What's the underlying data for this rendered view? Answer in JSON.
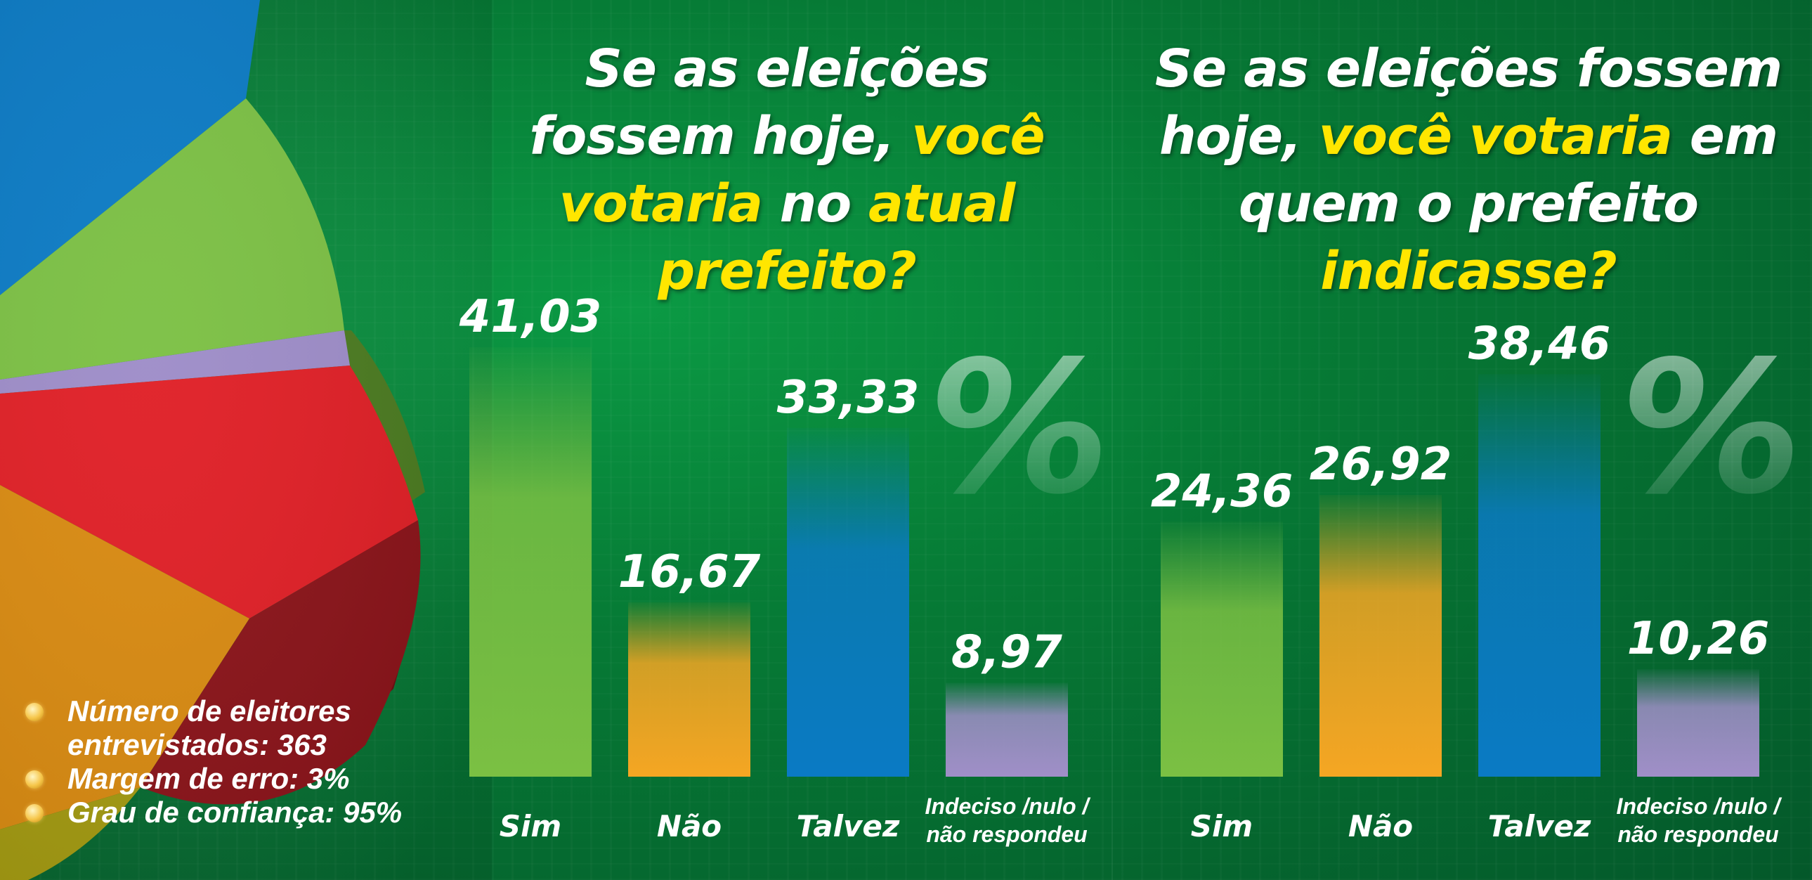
{
  "titles": [
    {
      "parts": [
        {
          "text": "Se as eleições fossem hoje, ",
          "highlight": false
        },
        {
          "text": "você votaria",
          "highlight": true
        },
        {
          "text": " no ",
          "highlight": false
        },
        {
          "text": "atual prefeito?",
          "highlight": true
        }
      ]
    },
    {
      "parts": [
        {
          "text": "Se as eleições fossem hoje, ",
          "highlight": false
        },
        {
          "text": "você votaria",
          "highlight": true
        },
        {
          "text": " em quem o prefeito ",
          "highlight": false
        },
        {
          "text": "indicasse?",
          "highlight": true
        }
      ]
    }
  ],
  "percent_symbol": "%",
  "colors": {
    "background": "#067a35",
    "highlight_text": "#ffe600",
    "sim": "#7bc043",
    "nao": "#f5a623",
    "talvez": "#0a7ac4",
    "indeciso": "#a08fc8"
  },
  "chart_data": [
    {
      "type": "bar",
      "categories": [
        "Sim",
        "Não",
        "Talvez",
        "Indeciso /nulo / não respondeu"
      ],
      "values": [
        41.03,
        16.67,
        33.33,
        8.97
      ],
      "value_labels": [
        "41,03",
        "16,67",
        "33,33",
        "8,97"
      ],
      "ylabel": "%",
      "ylim": [
        0,
        45
      ]
    },
    {
      "type": "bar",
      "categories": [
        "Sim",
        "Não",
        "Talvez",
        "Indeciso /nulo / não respondeu"
      ],
      "values": [
        24.36,
        26.92,
        38.46,
        10.26
      ],
      "value_labels": [
        "24,36",
        "26,92",
        "38,46",
        "10,26"
      ],
      "ylabel": "%",
      "ylim": [
        0,
        45
      ]
    }
  ],
  "info": [
    {
      "text": "Número de eleitores entrevistados: 363"
    },
    {
      "text": "Margem de erro: 3%"
    },
    {
      "text": "Grau de confiança: 95%"
    }
  ]
}
